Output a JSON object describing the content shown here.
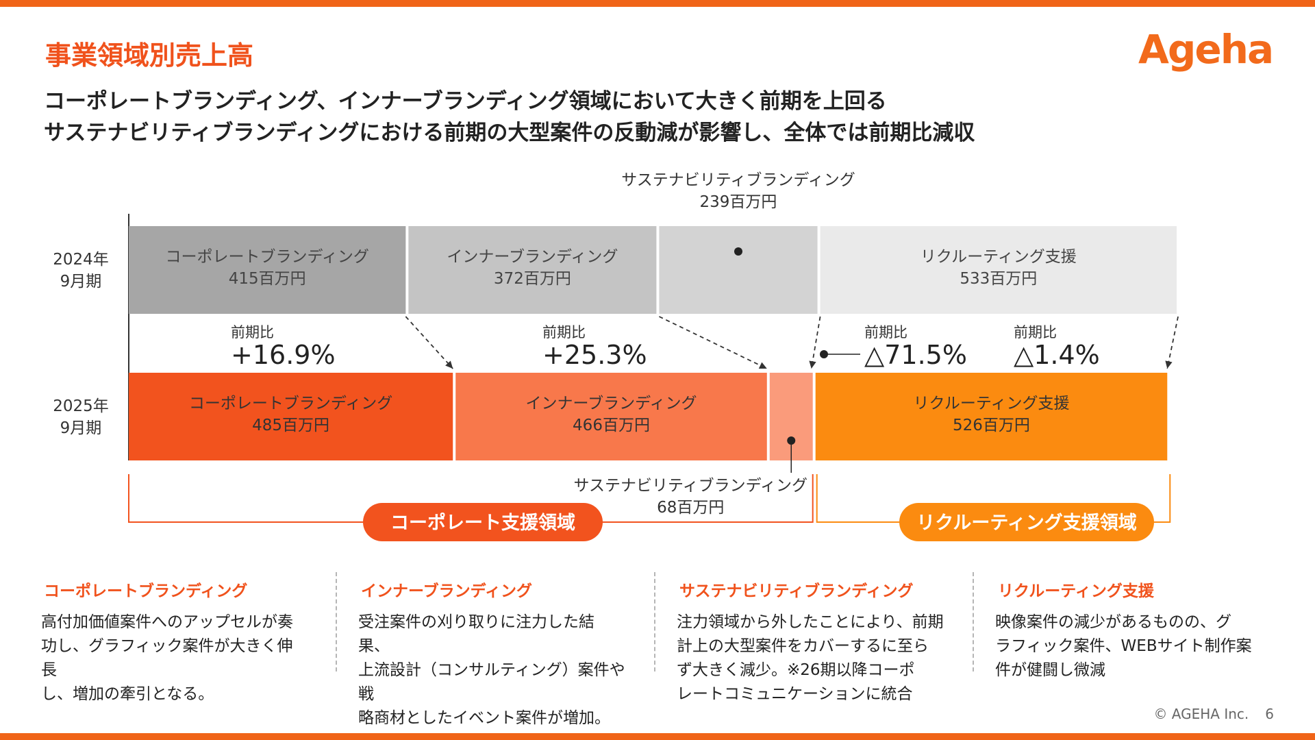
{
  "page": {
    "title": "事業領域別売上高",
    "logo_text": "Ageha",
    "headline_lines": [
      "コーポレートブランディング、インナーブランディング領域において大きく前期を上回る",
      "サステナビリティブランディングにおける前期の大型案件の反動減が影響し、全体では前期比減収"
    ],
    "copyright": "© AGEHA Inc.",
    "page_number": "6"
  },
  "chart_data": {
    "type": "bar",
    "orientation": "horizontal-stacked",
    "unit": "百万円",
    "categories": [
      "2024年\n9月期",
      "2025年\n9月期"
    ],
    "series": [
      {
        "name": "コーポレートブランディング",
        "values": [
          415,
          485
        ],
        "labels": [
          "415百万円",
          "485百万円"
        ],
        "colors": [
          "#a6a6a6",
          "#f2531e"
        ]
      },
      {
        "name": "インナーブランディング",
        "values": [
          372,
          466
        ],
        "labels": [
          "372百万円",
          "466百万円"
        ],
        "colors": [
          "#c4c4c4",
          "#f8784b"
        ]
      },
      {
        "name": "サステナビリティブランディング",
        "values": [
          239,
          68
        ],
        "labels": [
          "239百万円",
          "68百万円"
        ],
        "colors": [
          "#d3d3d3",
          "#fa9b7b"
        ]
      },
      {
        "name": "リクルーティング支援",
        "values": [
          533,
          526
        ],
        "labels": [
          "533百万円",
          "526百万円"
        ],
        "colors": [
          "#eaeaea",
          "#fb8b10"
        ]
      }
    ],
    "changes": [
      {
        "label": "前期比",
        "value": "+16.9%"
      },
      {
        "label": "前期比",
        "value": "+25.3%"
      },
      {
        "label": "前期比",
        "value": "△71.5%"
      },
      {
        "label": "前期比",
        "value": "△1.4%"
      }
    ],
    "groups": [
      {
        "name": "コーポレート支援領域",
        "color": "#f2531e"
      },
      {
        "name": "リクルーティング支援領域",
        "color": "#fb8b10"
      }
    ],
    "grid": false,
    "legend": "none"
  },
  "notes": [
    {
      "title": "コーポレートブランディング",
      "body": "高付加価値案件へのアップセルが奏\n功し、グラフィック案件が大きく伸長\nし、増加の牽引となる。"
    },
    {
      "title": "インナーブランディング",
      "body": "受注案件の刈り取りに注力した結果、\n上流設計（コンサルティング）案件や戦\n略商材としたイベント案件が増加。"
    },
    {
      "title": "サステナビリティブランディング",
      "body": "注力領域から外したことにより、前期\n計上の大型案件をカバーするに至ら\nず大きく減少。※26期以降コーポ\nレートコミュニケーションに統合"
    },
    {
      "title": "リクルーティング支援",
      "body": "映像案件の減少があるものの、グ\nラフィック案件、WEBサイト制作案\n件が健闘し微減"
    }
  ]
}
